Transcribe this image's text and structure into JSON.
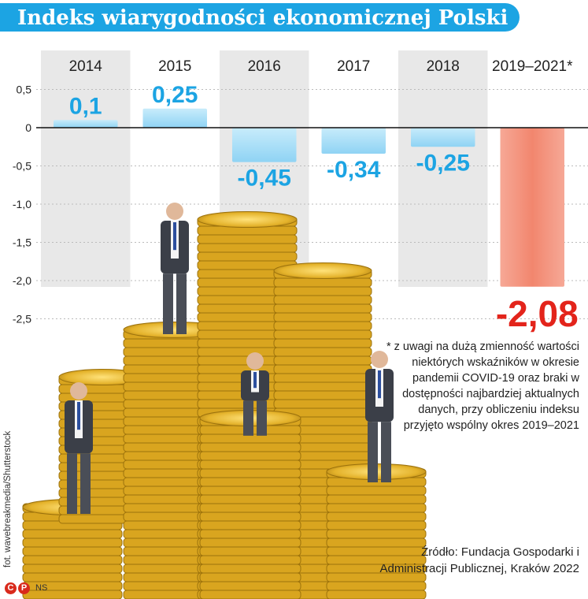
{
  "title": "Indeks wiarygodności ekonomicznej Polski",
  "chart_data": {
    "type": "bar",
    "categories": [
      "2014",
      "2015",
      "2016",
      "2017",
      "2018",
      "2019–2021*"
    ],
    "values": [
      0.1,
      0.25,
      -0.45,
      -0.34,
      -0.25,
      -2.08
    ],
    "value_labels": [
      "0,1",
      "0,25",
      "-0,45",
      "-0,34",
      "-0,25",
      "-2,08"
    ],
    "y_ticks": [
      0.5,
      0,
      -0.5,
      -1.0,
      -1.5,
      -2.0,
      -2.5
    ],
    "y_tick_labels": [
      "0,5",
      "0",
      "-0,5",
      "-1,0",
      "-1,5",
      "-2,0",
      "-2,5"
    ],
    "ylim": [
      -2.5,
      0.5
    ],
    "colors": {
      "bar_blue": "#8fd3f4",
      "bar_highlight": "#f2866e",
      "label_blue": "#1ca4e3",
      "label_red": "#e3241b",
      "column_shade": "#e8e8e8"
    },
    "legend": "none",
    "grid": true
  },
  "footnote": "* z uwagi na dużą zmienność wartości niektórych wskaźników w okresie pandemii COVID-19 oraz braki w dostępności najbardziej aktualnych danych, przy obliczeniu indeksu przyjęto wspólny okres 2019–2021",
  "source": "Źródło: Fundacja Gospodarki i Administracji Publicznej, Kraków 2022",
  "photo_credit": "fot. wavebreakmedia/Shutterstock",
  "agency": "NS",
  "logo_letters": [
    "C",
    "P"
  ]
}
